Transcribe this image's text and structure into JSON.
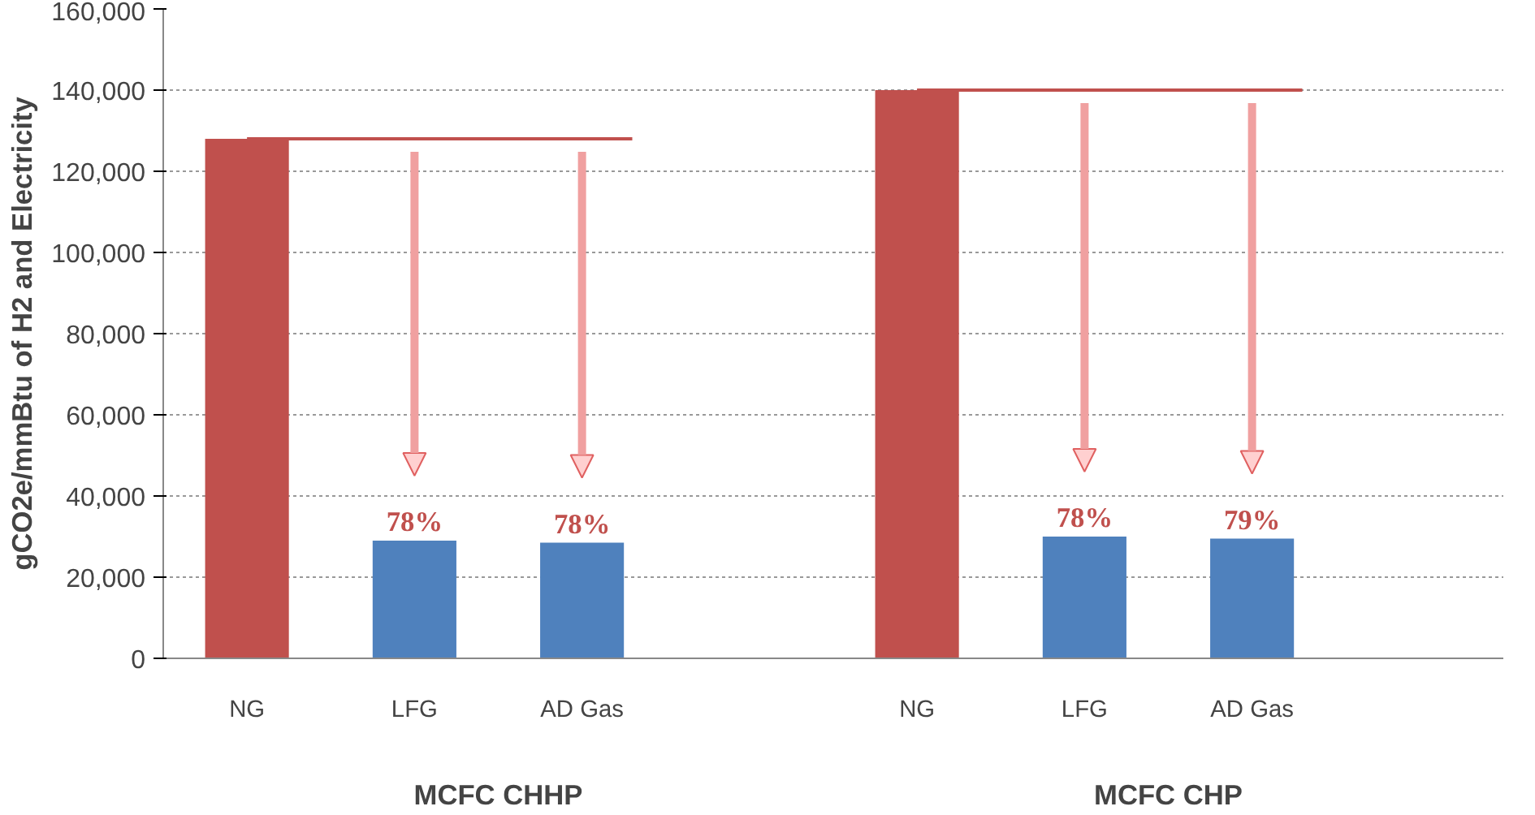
{
  "chart_data": {
    "type": "bar",
    "ylabel": "gCO2e/mmBtu of H2 and Electricity",
    "categories": [
      "NG",
      "LFG",
      "AD Gas",
      null,
      "NG",
      "LFG",
      "AD Gas",
      null
    ],
    "values": [
      128000,
      29000,
      28500,
      null,
      140000,
      30000,
      29500,
      null
    ],
    "colors": [
      "#c0504d",
      "#4f81bd",
      "#4f81bd",
      "#4f81bd",
      "#c0504d",
      "#4f81bd",
      "#4f81bd",
      "#4f81bd"
    ],
    "annotations": [
      "MCFC CHHP",
      "MCFC CHP",
      "78%",
      "78%",
      "78%",
      "79%"
    ],
    "ref_lines": [
      {
        "axis": "y",
        "value": 128000,
        "color": "#c0504d"
      },
      {
        "axis": "y",
        "value": 140000,
        "color": "#c0504d"
      }
    ],
    "ylim": [
      0,
      160000
    ],
    "yticks": [
      0,
      {
        "value": 20000,
        "label": "20,000"
      },
      {
        "value": 40000,
        "label": "40,000"
      },
      {
        "value": 60000,
        "label": "60,000"
      },
      {
        "value": 80000,
        "label": "80,000"
      },
      {
        "value": 100000,
        "label": "100,000"
      },
      {
        "value": 120000,
        "label": "120,000"
      },
      {
        "value": 140000,
        "label": "140,000"
      },
      {
        "value": 160000,
        "label": "160,000"
      }
    ],
    "grid": "y"
  }
}
